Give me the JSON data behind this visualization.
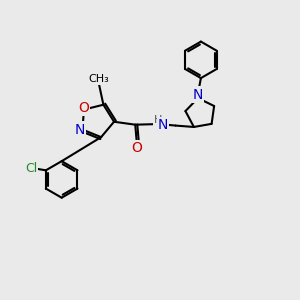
{
  "bg_color": "#eaeaea",
  "bond_color": "#000000",
  "bond_width": 1.5,
  "dbo": 0.07,
  "atom_colors": {
    "N": "#0000cc",
    "O": "#cc0000",
    "Cl": "#228B22",
    "C": "#000000"
  },
  "font_size": 9
}
